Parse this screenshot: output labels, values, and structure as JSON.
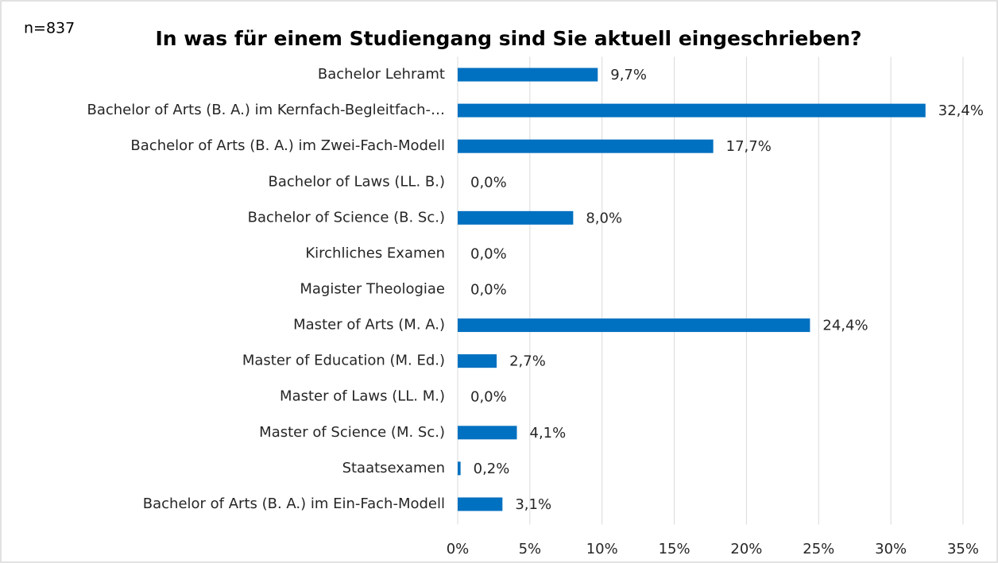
{
  "chart_data": {
    "type": "barh",
    "title": "In was für einem Studiengang sind Sie aktuell eingeschrieben?",
    "annotation": "n=837",
    "categories": [
      "Bachelor Lehramt",
      "Bachelor of Arts (B. A.) im Kernfach-Begleitfach-…",
      "Bachelor of Arts (B. A.) im Zwei-Fach-Modell",
      "Bachelor of Laws (LL. B.)",
      "Bachelor of Science (B. Sc.)",
      "Kirchliches Examen",
      "Magister Theologiae",
      "Master of Arts (M. A.)",
      "Master of Education (M. Ed.)",
      "Master of Laws (LL. M.)",
      "Master of Science (M. Sc.)",
      "Staatsexamen",
      "Bachelor of Arts (B. A.) im Ein-Fach-Modell"
    ],
    "values": [
      9.7,
      32.4,
      17.7,
      0,
      8.0,
      0,
      0,
      24.4,
      2.7,
      0,
      4.1,
      0.2,
      3.1
    ],
    "value_labels": [
      "9,7%",
      "32,4%",
      "17,7%",
      "0,0%",
      "8,0%",
      "0,0%",
      "0,0%",
      "24,4%",
      "2,7%",
      "0,0%",
      "4,1%",
      "0,2%",
      "3,1%"
    ],
    "color": "#0070c0",
    "xlim": [
      0,
      35
    ],
    "xticks": [
      {
        "value": 0,
        "label": "0%"
      },
      {
        "value": 5,
        "label": "5%"
      },
      {
        "value": 10,
        "label": "10%"
      },
      {
        "value": 15,
        "label": "15%"
      },
      {
        "value": 20,
        "label": "20%"
      },
      {
        "value": 25,
        "label": "25%"
      },
      {
        "value": 30,
        "label": "30%"
      },
      {
        "value": 35,
        "label": "35%"
      }
    ],
    "grid": true
  }
}
